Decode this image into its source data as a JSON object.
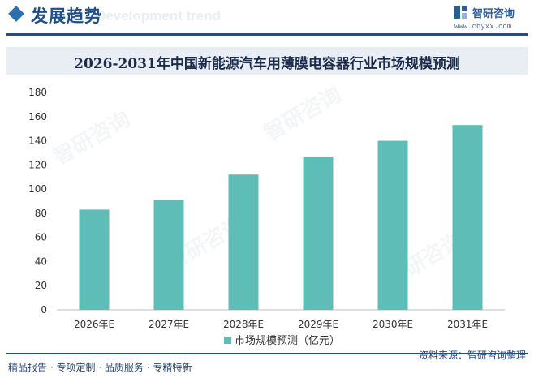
{
  "header": {
    "section_title": "发展趋势",
    "ghost_text": "Development trend",
    "logo_text": "智研咨询",
    "logo_url": "www.chyxx.com"
  },
  "chart_data": {
    "type": "bar",
    "title": "2026-2031年中国新能源汽车用薄膜电容器行业市场规模预测",
    "categories": [
      "2026年E",
      "2027年E",
      "2028年E",
      "2029年E",
      "2030年E",
      "2031年E"
    ],
    "series": [
      {
        "name": "市场规模预测（亿元）",
        "values": [
          83,
          91,
          112,
          127,
          140,
          153
        ],
        "color": "#5fbdb7"
      }
    ],
    "ylim": [
      0,
      180
    ],
    "yticks": [
      0,
      20,
      40,
      60,
      80,
      100,
      120,
      140,
      160,
      180
    ],
    "grid": false,
    "legend_position": "bottom-center"
  },
  "watermark": {
    "text": "智研咨询"
  },
  "footer": {
    "left_text": "精品报告 · 专项定制 · 品质服务 · 专精特新",
    "source": "资料来源：智研咨询整理"
  }
}
